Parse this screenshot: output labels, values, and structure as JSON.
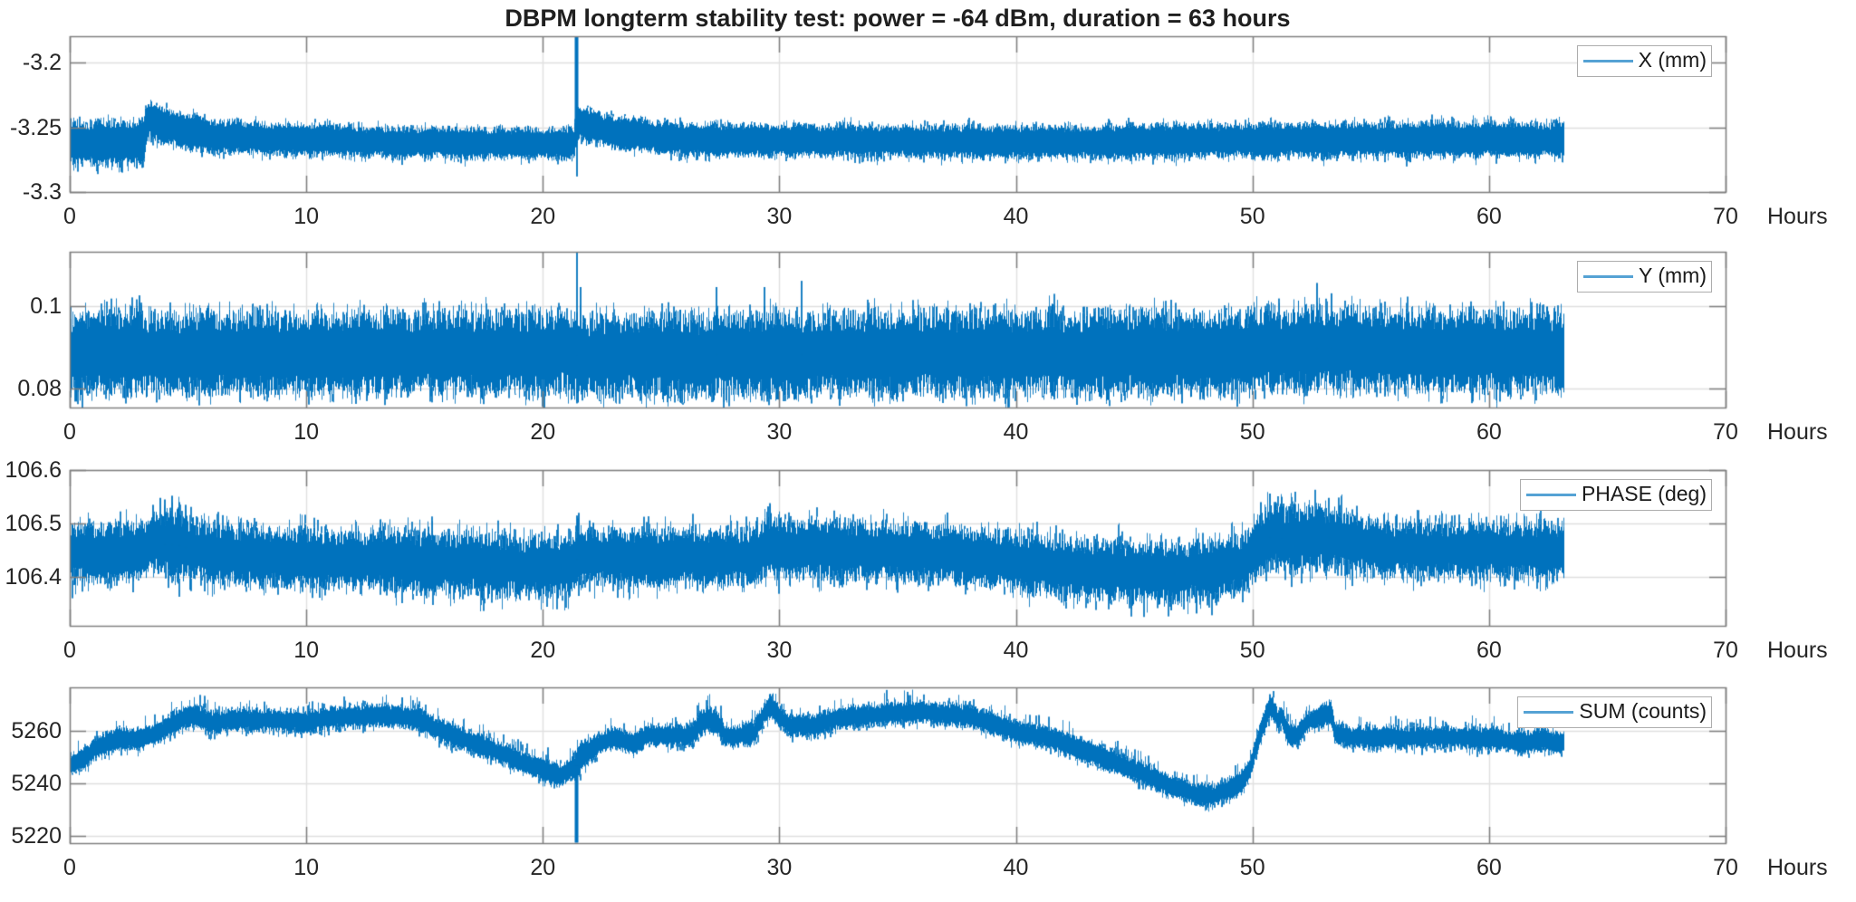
{
  "figure": {
    "title": "DBPM longterm stability test: power = -64 dBm, duration = 63 hours"
  },
  "chart_data": {
    "type": "line",
    "title": "DBPM longterm stability test: power = -64 dBm, duration = 63 hours",
    "line_color": "#0072BD",
    "grid": true,
    "legend_position": "northeast",
    "x_axis": {
      "label": "Hours",
      "lim": [
        0,
        70
      ],
      "ticks": [
        0,
        10,
        20,
        30,
        40,
        50,
        60,
        70
      ],
      "tick_labels": [
        "0",
        "10",
        "20",
        "30",
        "40",
        "50",
        "60",
        "70"
      ],
      "data_start": 0,
      "data_end": 63.2
    },
    "subplots": [
      {
        "name": "X",
        "legend": "X (mm)",
        "unit": "mm",
        "ylim": [
          -3.3,
          -3.1796
        ],
        "yticks": [
          -3.2,
          -3.25,
          -3.3
        ],
        "ytick_labels": [
          "-3.2",
          "-3.25",
          "-3.3"
        ],
        "seed": 101,
        "envelope": [
          [
            0.0,
            -3.2615,
            0.018
          ],
          [
            3.1,
            -3.2615,
            0.018
          ],
          [
            3.3,
            -3.2425,
            0.0145
          ],
          [
            4.0,
            -3.2495,
            0.0145
          ],
          [
            5.5,
            -3.2555,
            0.014
          ],
          [
            7.0,
            -3.258,
            0.0135
          ],
          [
            10.0,
            -3.2595,
            0.013
          ],
          [
            14.0,
            -3.2615,
            0.0125
          ],
          [
            21.3,
            -3.2625,
            0.0125
          ],
          [
            21.5,
            -3.2475,
            0.0135
          ],
          [
            23.0,
            -3.2535,
            0.013
          ],
          [
            25.0,
            -3.258,
            0.013
          ],
          [
            27.0,
            -3.26,
            0.013
          ],
          [
            40.0,
            -3.2615,
            0.013
          ],
          [
            48.0,
            -3.2605,
            0.0135
          ],
          [
            55.0,
            -3.2595,
            0.014
          ],
          [
            63.2,
            -3.26,
            0.0145
          ]
        ],
        "spikes": [
          [
            21.4,
            -3.175
          ],
          [
            21.42,
            -3.288
          ]
        ],
        "noise": {
          "core": 0.62,
          "needle_p": 0.22,
          "needle_max_up": 1.3,
          "needle_max_dn": 1.32
        }
      },
      {
        "name": "Y",
        "legend": "Y (mm)",
        "unit": "mm",
        "ylim": [
          0.0755,
          0.113
        ],
        "yticks": [
          0.1,
          0.08
        ],
        "ytick_labels": [
          "0.1",
          "0.08"
        ],
        "seed": 202,
        "envelope": [
          [
            0.0,
            0.0885,
            0.01
          ],
          [
            21.3,
            0.0885,
            0.01
          ],
          [
            21.5,
            0.0877,
            0.01
          ],
          [
            24.0,
            0.0882,
            0.01
          ],
          [
            49.5,
            0.0887,
            0.01
          ],
          [
            51.0,
            0.0897,
            0.0103
          ],
          [
            54.0,
            0.0897,
            0.0103
          ],
          [
            56.0,
            0.089,
            0.01
          ],
          [
            63.2,
            0.089,
            0.01
          ]
        ],
        "spikes": [
          [
            2.9,
            0.1025
          ],
          [
            21.4,
            0.1135
          ],
          [
            21.42,
            0.0765
          ],
          [
            21.55,
            0.1045
          ],
          [
            27.3,
            0.1045
          ],
          [
            29.35,
            0.1045
          ],
          [
            30.9,
            0.106
          ],
          [
            47.0,
            0.0765
          ],
          [
            52.7,
            0.1055
          ],
          [
            53.3,
            0.103
          ]
        ],
        "noise": {
          "core": 0.52,
          "pow": 1.8,
          "needle_p": 0.25,
          "needle_max_up": 1.28,
          "needle_max_dn": 1.24
        }
      },
      {
        "name": "PHASE",
        "legend": "PHASE (deg)",
        "unit": "deg",
        "ylim": [
          106.309,
          106.6
        ],
        "yticks": [
          106.6,
          106.5,
          106.4
        ],
        "ytick_labels": [
          "106.6",
          "106.5",
          "106.4"
        ],
        "seed": 303,
        "envelope": [
          [
            0.0,
            106.448,
            0.055
          ],
          [
            1.5,
            106.444,
            0.052
          ],
          [
            3.0,
            106.448,
            0.055
          ],
          [
            3.7,
            106.462,
            0.062
          ],
          [
            4.5,
            106.46,
            0.062
          ],
          [
            6.0,
            106.442,
            0.055
          ],
          [
            9.0,
            106.436,
            0.055
          ],
          [
            13.0,
            106.432,
            0.057
          ],
          [
            16.0,
            106.425,
            0.058
          ],
          [
            19.0,
            106.42,
            0.058
          ],
          [
            21.2,
            106.418,
            0.056
          ],
          [
            21.5,
            106.44,
            0.056
          ],
          [
            23.0,
            106.437,
            0.054
          ],
          [
            26.0,
            106.435,
            0.054
          ],
          [
            28.8,
            106.437,
            0.054
          ],
          [
            29.6,
            106.458,
            0.058
          ],
          [
            30.5,
            106.452,
            0.055
          ],
          [
            33.0,
            106.449,
            0.054
          ],
          [
            36.0,
            106.445,
            0.054
          ],
          [
            38.5,
            106.437,
            0.054
          ],
          [
            41.0,
            106.422,
            0.056
          ],
          [
            44.0,
            106.412,
            0.056
          ],
          [
            46.5,
            106.409,
            0.056
          ],
          [
            48.5,
            106.415,
            0.054
          ],
          [
            49.7,
            106.427,
            0.054
          ],
          [
            50.6,
            106.474,
            0.06
          ],
          [
            51.5,
            106.471,
            0.06
          ],
          [
            52.5,
            106.476,
            0.06
          ],
          [
            53.4,
            106.474,
            0.06
          ],
          [
            54.5,
            106.462,
            0.056
          ],
          [
            56.0,
            106.452,
            0.052
          ],
          [
            59.0,
            106.449,
            0.052
          ],
          [
            63.2,
            106.447,
            0.054
          ]
        ],
        "spikes": [
          [
            3.8,
            106.548
          ],
          [
            4.3,
            106.552
          ],
          [
            4.6,
            106.54
          ],
          [
            21.4,
            106.515
          ],
          [
            21.5,
            106.52
          ],
          [
            29.5,
            106.532
          ],
          [
            47.6,
            106.332
          ],
          [
            50.3,
            106.54
          ],
          [
            50.7,
            106.556
          ],
          [
            51.2,
            106.55
          ],
          [
            53.2,
            106.548
          ],
          [
            3.5,
            106.535
          ],
          [
            4.0,
            106.545
          ],
          [
            4.85,
            106.535
          ]
        ],
        "noise": {
          "core": 0.5,
          "needle_p": 0.3,
          "needle_max_up": 1.42,
          "needle_max_dn": 1.45
        }
      },
      {
        "name": "SUM",
        "legend": "SUM (counts)",
        "unit": "counts",
        "ylim": [
          5217.2,
          5276.6
        ],
        "yticks": [
          5260,
          5240,
          5220
        ],
        "ytick_labels": [
          "5260",
          "5240",
          "5220"
        ],
        "seed": 404,
        "envelope": [
          [
            0.0,
            5247,
            4.2
          ],
          [
            0.5,
            5249,
            4.2
          ],
          [
            1.2,
            5254,
            4.2
          ],
          [
            2.0,
            5257,
            4.5
          ],
          [
            3.0,
            5257,
            4.5
          ],
          [
            3.6,
            5259,
            4.5
          ],
          [
            4.8,
            5265,
            4.4
          ],
          [
            5.3,
            5266,
            4.4
          ],
          [
            5.9,
            5263,
            4.5
          ],
          [
            7.0,
            5264,
            4.5
          ],
          [
            8.5,
            5264,
            4.5
          ],
          [
            10.0,
            5263.5,
            4.5
          ],
          [
            11.0,
            5265,
            4.5
          ],
          [
            12.5,
            5265.5,
            4.5
          ],
          [
            13.8,
            5266,
            4.2
          ],
          [
            14.8,
            5264,
            4.5
          ],
          [
            16.0,
            5259,
            4.5
          ],
          [
            17.5,
            5254,
            4.5
          ],
          [
            19.0,
            5248.5,
            4.5
          ],
          [
            20.3,
            5244,
            4.5
          ],
          [
            20.8,
            5243.5,
            4.5
          ],
          [
            21.2,
            5245.5,
            4.2
          ],
          [
            21.35,
            5246,
            6.0
          ],
          [
            21.6,
            5250,
            6.0
          ],
          [
            22.3,
            5255,
            4.4
          ],
          [
            23.0,
            5257.5,
            4.5
          ],
          [
            23.8,
            5255,
            4.5
          ],
          [
            24.5,
            5258.5,
            4.5
          ],
          [
            25.5,
            5258,
            4.5
          ],
          [
            26.3,
            5258.5,
            4.5
          ],
          [
            26.6,
            5262,
            5.0
          ],
          [
            27.0,
            5264,
            5.5
          ],
          [
            27.4,
            5263,
            5.0
          ],
          [
            27.7,
            5258,
            4.2
          ],
          [
            28.2,
            5258,
            4.5
          ],
          [
            28.9,
            5259,
            4.5
          ],
          [
            29.3,
            5266,
            4.4
          ],
          [
            29.6,
            5270,
            4.4
          ],
          [
            30.0,
            5265,
            4.2
          ],
          [
            30.4,
            5262,
            4.5
          ],
          [
            31.5,
            5262,
            4.5
          ],
          [
            32.5,
            5265,
            4.5
          ],
          [
            34.0,
            5266,
            4.5
          ],
          [
            35.5,
            5267,
            4.5
          ],
          [
            37.5,
            5266,
            4.5
          ],
          [
            38.5,
            5264,
            4.5
          ],
          [
            40.0,
            5260,
            4.5
          ],
          [
            41.5,
            5257,
            4.5
          ],
          [
            43.0,
            5252,
            4.5
          ],
          [
            44.5,
            5247,
            4.5
          ],
          [
            45.8,
            5242,
            4.5
          ],
          [
            46.8,
            5238,
            4.5
          ],
          [
            47.5,
            5236,
            4.5
          ],
          [
            48.3,
            5235.5,
            4.5
          ],
          [
            48.9,
            5238,
            4.5
          ],
          [
            49.5,
            5240,
            4.5
          ],
          [
            49.9,
            5246,
            4.2
          ],
          [
            50.3,
            5259,
            4.6
          ],
          [
            50.7,
            5269,
            4.6
          ],
          [
            50.95,
            5268,
            4.4
          ],
          [
            51.05,
            5263,
            4.2
          ],
          [
            51.2,
            5266,
            4.2
          ],
          [
            51.5,
            5258,
            4.5
          ],
          [
            51.9,
            5258,
            4.5
          ],
          [
            52.2,
            5263,
            4.2
          ],
          [
            52.8,
            5265,
            4.2
          ],
          [
            53.3,
            5267,
            4.6
          ],
          [
            53.5,
            5259,
            4.5
          ],
          [
            54.2,
            5257.5,
            4.5
          ],
          [
            56.0,
            5257.5,
            4.5
          ],
          [
            58.0,
            5257.5,
            4.5
          ],
          [
            60.0,
            5257,
            4.5
          ],
          [
            61.5,
            5255.5,
            4.5
          ],
          [
            62.3,
            5256.5,
            4.5
          ],
          [
            63.2,
            5255,
            4.5
          ]
        ],
        "spikes": [
          [
            21.4,
            5217.4
          ],
          [
            29.55,
            5274
          ],
          [
            50.7,
            5274
          ]
        ],
        "noise": {
          "core": 0.55,
          "needle_p": 0.3,
          "needle_max_up": 1.95,
          "needle_max_dn": 1.5
        }
      }
    ]
  }
}
